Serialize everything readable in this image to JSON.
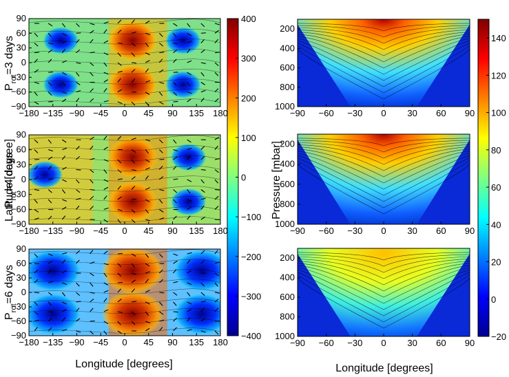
{
  "figure": {
    "xlabel_left": "Longitude [degrees]",
    "xlabel_right": "Longitude [degrees]",
    "ylabel_left": "Latitude [degree]",
    "ylabel_right": "Pressure [mbar]"
  },
  "rows": [
    {
      "label_main": "P",
      "label_sub": "rot",
      "label_rest": "=3 days"
    },
    {
      "label_main": "P",
      "label_sub": "rot",
      "label_rest": "=4 days"
    },
    {
      "label_main": "P",
      "label_sub": "rot",
      "label_rest": "=6 days"
    }
  ],
  "chart_data": [
    {
      "type": "heatmap",
      "role": "left-column",
      "xlabel": "Longitude [degrees]",
      "ylabel": "Latitude [degree]",
      "xlim": [
        -180,
        180
      ],
      "ylim": [
        -90,
        90
      ],
      "xticks": [
        -180,
        -135,
        -90,
        -45,
        0,
        45,
        90,
        135,
        180
      ],
      "yticks": [
        90,
        60,
        30,
        0,
        -30,
        -60,
        -90
      ],
      "colorbar": {
        "min": -400,
        "max": 400,
        "ticks": [
          400,
          300,
          200,
          100,
          0,
          -100,
          -200,
          -300,
          -400
        ],
        "colormap": "jet"
      },
      "overlay": [
        "contours",
        "velocity-vectors"
      ]
    },
    {
      "type": "heatmap",
      "role": "right-column",
      "xlabel": "Longitude [degrees]",
      "ylabel": "Pressure [mbar]",
      "xlim": [
        -90,
        90
      ],
      "ylim": [
        1000,
        100
      ],
      "xticks": [
        -90,
        -60,
        -30,
        0,
        30,
        60,
        90
      ],
      "yticks": [
        200,
        400,
        600,
        800,
        1000
      ],
      "colorbar": {
        "min": -20,
        "max": 150,
        "ticks": [
          140,
          120,
          100,
          80,
          60,
          40,
          20,
          0,
          -20
        ],
        "colormap": "jet"
      },
      "overlay": [
        "contours"
      ]
    }
  ]
}
